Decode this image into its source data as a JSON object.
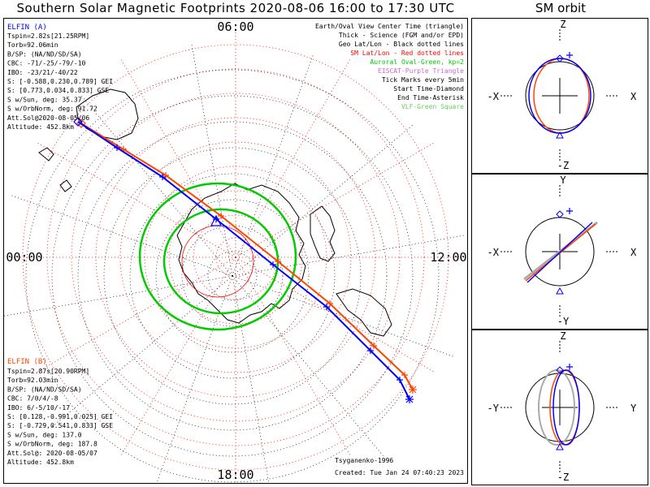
{
  "title": "Southern Solar Magnetic Footprints 2020-08-06 16:00 to 17:30 UTC",
  "orbit_title": "SM orbit",
  "hour_labels": {
    "top": "06:00",
    "left": "00:00",
    "right": "12:00",
    "bottom": "18:00"
  },
  "legend": [
    {
      "text": "Earth/Oval View Center Time (triangle)",
      "color": "#000000"
    },
    {
      "text": "Thick - Science (FGM and/or EPD)",
      "color": "#000000"
    },
    {
      "text": "Geo Lat/Lon - Black dotted lines",
      "color": "#000000"
    },
    {
      "text": "SM Lat/Lon - Red dotted lines",
      "color": "#ff0000"
    },
    {
      "text": "Auroral Oval-Green, kp=2",
      "color": "#00cc00"
    },
    {
      "text": "EISCAT-Purple Triangle",
      "color": "#cc66cc"
    },
    {
      "text": "Tick Marks every 5min",
      "color": "#000000"
    },
    {
      "text": "Start Time-Diamond",
      "color": "#000000"
    },
    {
      "text": "End Time-Asterisk",
      "color": "#000000"
    },
    {
      "text": "VLF-Green Square",
      "color": "#66cc66"
    }
  ],
  "probe_a": {
    "name": "ELFIN (A)",
    "color": "#0000ff",
    "lines": [
      "Tspin=2.82s[21.25RPM]",
      "Torb=92.06min",
      "B/SP: (NA/ND/SD/SA)",
      "CBC: -71/-25/-79/-10",
      "IBO: -23/21/-40/22",
      "S: [-0.588,0.230,0.789] GEI",
      "S: [0.773,0.034,0.833] GSE",
      "S w/Sun, deg: 35.37",
      "S w/OrbNorm, deg: 91.72",
      "Att.Sol@2020-08-05/06",
      "Altitude: 452.8km"
    ]
  },
  "probe_b": {
    "name": "ELFIN (B)",
    "color": "#ff4500",
    "lines": [
      "Tspin=2.87s[20.90RPM]",
      "Torb=92.03min",
      "B/SP: (NA/ND/SD/SA)",
      "CBC: 7/0/4/-8",
      "IBO: 6/-5/10/-17",
      "S: [0.128,-0.991,0.025] GEI",
      "S: [-0.729,0.541,0.833] GSE",
      "S w/Sun, deg: 137.0",
      "S w/OrbNorm, deg: 187.8",
      "Att.Sol@: 2020-08-05/07",
      "Altitude: 452.8km"
    ]
  },
  "footer_left": "Tsyganenko-1996",
  "footer_created": "Created: Tue Jan 24 07:40:23 2023",
  "orbit_panels": [
    {
      "top": "Z",
      "bottom": "-Z",
      "left": "-X",
      "right": "X"
    },
    {
      "top": "Y",
      "bottom": "-Y",
      "left": "-X",
      "right": "X"
    },
    {
      "top": "Z",
      "bottom": "-Z",
      "left": "-Y",
      "right": "Y"
    }
  ],
  "colors": {
    "probe_a": "#0000ff",
    "probe_b": "#ff4500",
    "oval": "#00cc00",
    "sm_grid": "#ff0000",
    "geo_grid": "#000000",
    "orbit_b_projection": "#aaaaaa"
  },
  "chart_data": {
    "type": "scatter",
    "projection": "southern polar stereographic (SM)",
    "time_range": [
      "2020-08-06 16:00",
      "2020-08-06 17:30"
    ],
    "series": [
      {
        "name": "ELFIN (A)",
        "color": "#0000ff"
      },
      {
        "name": "ELFIN (B)",
        "color": "#ff4500"
      }
    ],
    "auroral_oval_kp": 2,
    "tick_interval_min": 5
  }
}
